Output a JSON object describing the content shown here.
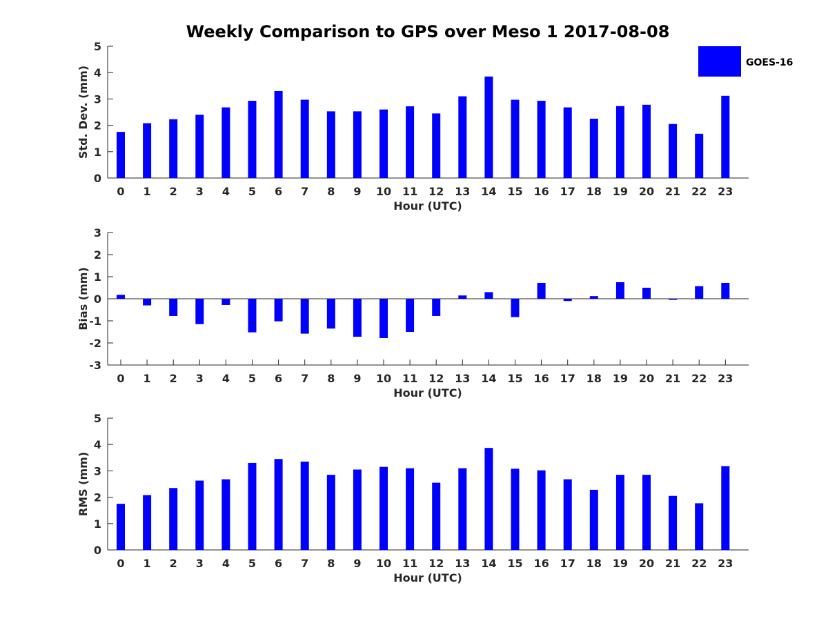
{
  "title": "Weekly Comparison to GPS over Meso 1 2017-08-08",
  "legend": {
    "label": "GOES-16",
    "color": "#0000ff"
  },
  "bar_color": "#0000ff",
  "chart_data": [
    {
      "type": "bar",
      "name": "std-dev",
      "series": [
        {
          "name": "GOES-16",
          "values": [
            1.75,
            2.08,
            2.23,
            2.4,
            2.68,
            2.93,
            3.3,
            2.97,
            2.53,
            2.53,
            2.6,
            2.72,
            2.45,
            3.1,
            3.85,
            2.97,
            2.93,
            2.68,
            2.25,
            2.73,
            2.78,
            2.05,
            1.68,
            3.12
          ]
        }
      ],
      "categories": [
        "0",
        "1",
        "2",
        "3",
        "4",
        "5",
        "6",
        "7",
        "8",
        "9",
        "10",
        "11",
        "12",
        "13",
        "14",
        "15",
        "16",
        "17",
        "18",
        "19",
        "20",
        "21",
        "22",
        "23"
      ],
      "xlabel": "Hour (UTC)",
      "ylabel": "Std. Dev. (mm)",
      "ylim": [
        0,
        5
      ],
      "yticks": [
        "0",
        "1",
        "2",
        "3",
        "4",
        "5"
      ]
    },
    {
      "type": "bar",
      "name": "bias",
      "series": [
        {
          "name": "GOES-16",
          "values": [
            0.18,
            -0.3,
            -0.78,
            -1.15,
            -0.28,
            -1.52,
            -1.02,
            -1.58,
            -1.35,
            -1.72,
            -1.78,
            -1.5,
            -0.78,
            0.15,
            0.3,
            -0.83,
            0.72,
            -0.1,
            0.12,
            0.75,
            0.5,
            -0.05,
            0.57,
            0.72
          ]
        }
      ],
      "categories": [
        "0",
        "1",
        "2",
        "3",
        "4",
        "5",
        "6",
        "7",
        "8",
        "9",
        "10",
        "11",
        "12",
        "13",
        "14",
        "15",
        "16",
        "17",
        "18",
        "19",
        "20",
        "21",
        "22",
        "23"
      ],
      "xlabel": "Hour (UTC)",
      "ylabel": "Bias (mm)",
      "ylim": [
        -3,
        3
      ],
      "yticks": [
        "-3",
        "-2",
        "-1",
        "0",
        "1",
        "2",
        "3"
      ]
    },
    {
      "type": "bar",
      "name": "rms",
      "series": [
        {
          "name": "GOES-16",
          "values": [
            1.75,
            2.08,
            2.35,
            2.63,
            2.68,
            3.3,
            3.45,
            3.35,
            2.85,
            3.05,
            3.15,
            3.1,
            2.55,
            3.1,
            3.87,
            3.08,
            3.02,
            2.68,
            2.28,
            2.85,
            2.85,
            2.05,
            1.77,
            3.18
          ]
        }
      ],
      "categories": [
        "0",
        "1",
        "2",
        "3",
        "4",
        "5",
        "6",
        "7",
        "8",
        "9",
        "10",
        "11",
        "12",
        "13",
        "14",
        "15",
        "16",
        "17",
        "18",
        "19",
        "20",
        "21",
        "22",
        "23"
      ],
      "xlabel": "Hour (UTC)",
      "ylabel": "RMS (mm)",
      "ylim": [
        0,
        5
      ],
      "yticks": [
        "0",
        "1",
        "2",
        "3",
        "4",
        "5"
      ]
    }
  ]
}
